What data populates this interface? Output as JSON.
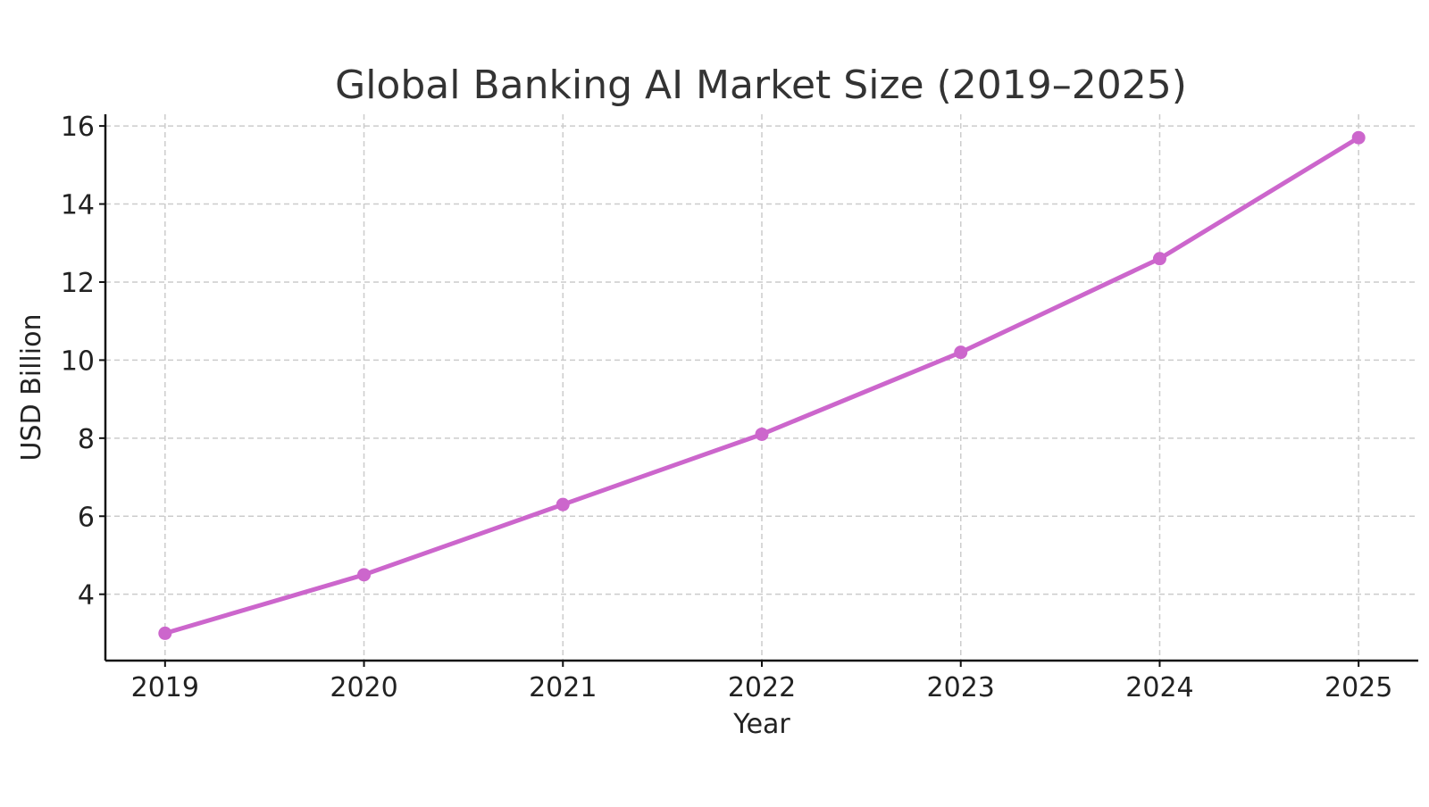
{
  "chart_data": {
    "type": "line",
    "title": "Global Banking AI Market Size (2019–2025)",
    "xlabel": "Year",
    "ylabel": "USD Billion",
    "x": [
      2019,
      2020,
      2021,
      2022,
      2023,
      2024,
      2025
    ],
    "series": [
      {
        "values": [
          3.0,
          4.5,
          6.3,
          8.1,
          10.2,
          12.6,
          15.7
        ],
        "color": "#cc66cc"
      }
    ],
    "xlim": [
      2018.7,
      2025.3
    ],
    "ylim": [
      2.3,
      16.3
    ],
    "yticks": [
      4,
      6,
      8,
      10,
      12,
      14,
      16
    ],
    "xticks": [
      2019,
      2020,
      2021,
      2022,
      2023,
      2024,
      2025
    ],
    "grid": true,
    "markers": true
  }
}
